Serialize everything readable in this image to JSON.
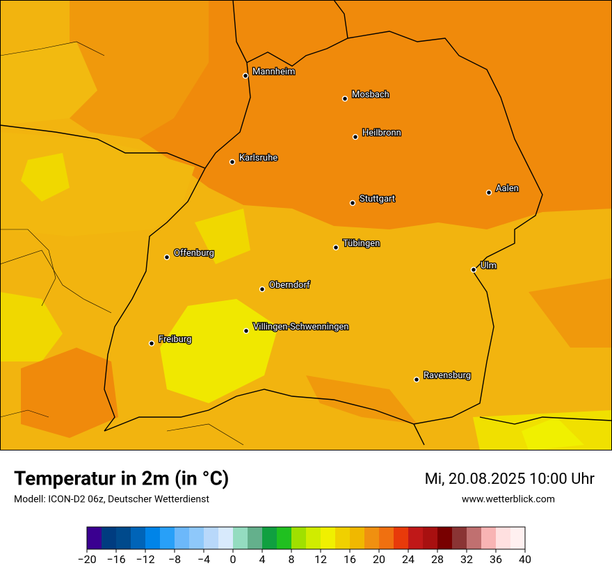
{
  "map": {
    "cities": [
      "Mannheim",
      "Mosbach",
      "Heilbronn",
      "Karlsruhe",
      "Aalen",
      "Stuttgart",
      "Tübingen",
      "Offenburg",
      "Ulm",
      "Oberndorf",
      "Villingen-Schwenningen",
      "Freiburg",
      "Ravensburg"
    ]
  },
  "footer": {
    "title": "Temperatur in 2m (in °C)",
    "subtitle": "Modell: ICON-D2 06z, Deutscher Wetterdienst",
    "date": "Mi, 20.08.2025 10:00 Uhr",
    "website": "www.wetterblick.com"
  },
  "colorbar": {
    "lim": [
      -20,
      40
    ],
    "ticks": [
      {
        "value": -20,
        "label": "−20"
      },
      {
        "value": -16,
        "label": "−16"
      },
      {
        "value": -12,
        "label": "−12"
      },
      {
        "value": -8,
        "label": "−8"
      },
      {
        "value": -4,
        "label": "−4"
      },
      0,
      4,
      8,
      12,
      16,
      20,
      24,
      28,
      32,
      36,
      40
    ],
    "colors": [
      "#3a0090",
      "#003c80",
      "#004a8c",
      "#0064b8",
      "#0084e8",
      "#28a0f8",
      "#6cb8fa",
      "#8ec8fa",
      "#b8d8fa",
      "#d8eafc",
      "#94dcc0",
      "#64b08c",
      "#10a040",
      "#20c020",
      "#a0e000",
      "#d0ec00",
      "#f0f000",
      "#f0d000",
      "#f0b800",
      "#f09010",
      "#f07010",
      "#e83a0a",
      "#c01818",
      "#a81010",
      "#780000",
      "#8a3434",
      "#c07070",
      "#f8b4b4",
      "#ffe0e0",
      "#fff0f0"
    ]
  }
}
